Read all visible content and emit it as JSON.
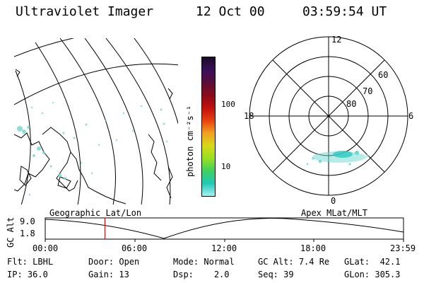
{
  "header": {
    "title": "Ultraviolet Imager",
    "date": "12 Oct 00",
    "time": "03:59:54 UT"
  },
  "colorbar": {
    "label": "photon cm⁻²s⁻¹",
    "ticks": [
      "100",
      "10"
    ],
    "colors": [
      "#1b0a2a",
      "#3a0f5a",
      "#5a0e3a",
      "#8a0a1a",
      "#c01010",
      "#e84010",
      "#f0a020",
      "#d8d818",
      "#98e020",
      "#40d060",
      "#20c8b8",
      "#a8f0f0"
    ]
  },
  "left_panel": {
    "caption": "Geographic Lat/Lon"
  },
  "right_panel": {
    "caption": "Apex MLat/MLT",
    "mlt_labels": {
      "top": "12",
      "left": "18",
      "right": "6",
      "bottom": "0"
    },
    "lat_labels": [
      "60",
      "70",
      "80"
    ]
  },
  "altitude_plot": {
    "ylabel": "GC Alt",
    "yticks": [
      "9.0",
      "1.8"
    ],
    "xticks": [
      "00:00",
      "06:00",
      "12:00",
      "18:00",
      "23:59"
    ],
    "current_time_fraction": 0.1667
  },
  "info": {
    "row1": [
      {
        "label": "Flt:",
        "value": "LBHL"
      },
      {
        "label": "Door:",
        "value": "Open"
      },
      {
        "label": "Mode:",
        "value": "Normal"
      },
      {
        "label": "GC Alt:",
        "value": "7.4 Re"
      },
      {
        "label": "GLat:",
        "value": "42.1"
      }
    ],
    "row2": [
      {
        "label": "IP:",
        "value": "36.0"
      },
      {
        "label": "Gain:",
        "value": "13"
      },
      {
        "label": "Dsp:",
        "value": "2.0"
      },
      {
        "label": "Seq:",
        "value": "39"
      },
      {
        "label": "GLon:",
        "value": "305.3"
      }
    ]
  }
}
